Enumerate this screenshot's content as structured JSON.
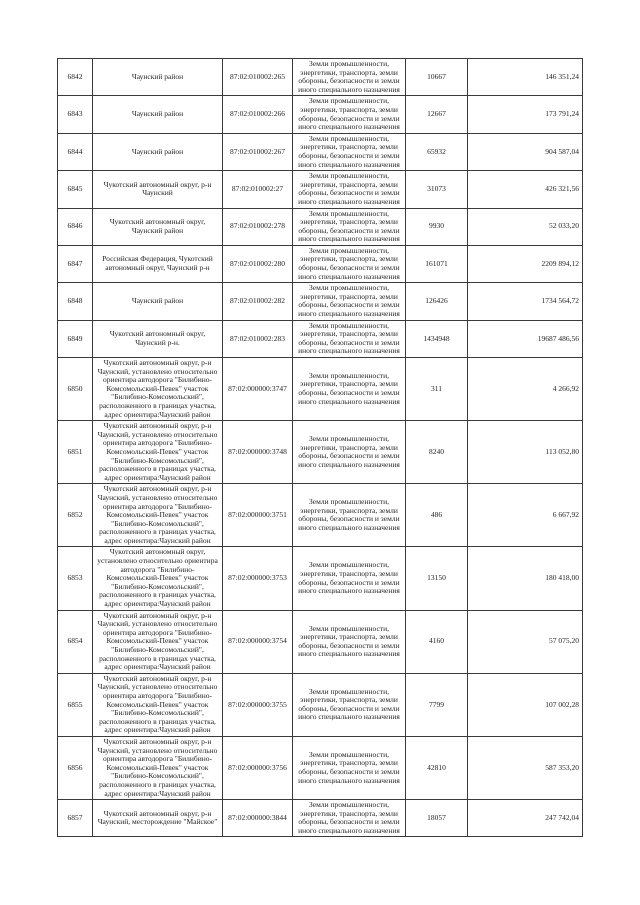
{
  "colors": {
    "page_background": "#ffffff",
    "table_border": "#3a3a3a",
    "text": "#1f1f1f"
  },
  "table": {
    "land_category_common": "Земли промышленности, энергетики, транспорта, земли обороны, безопасности и земли иного специального назначения",
    "rows": [
      {
        "num": "6842",
        "location": "Чаунский район",
        "cadastral": "87:02:010002:265",
        "area": "10667",
        "value": "146 351,24"
      },
      {
        "num": "6843",
        "location": "Чаунский район",
        "cadastral": "87:02:010002:266",
        "area": "12667",
        "value": "173 791,24"
      },
      {
        "num": "6844",
        "location": "Чаунский район",
        "cadastral": "87:02:010002:267",
        "area": "65932",
        "value": "904 587,04"
      },
      {
        "num": "6845",
        "location": "Чукотский автономный округ, р-н Чаунский",
        "cadastral": "87:02:010002:27",
        "area": "31073",
        "value": "426 321,56"
      },
      {
        "num": "6846",
        "location": "Чукотский автономный округ, Чаунский район",
        "cadastral": "87:02:010002:278",
        "area": "9930",
        "value": "52 033,20"
      },
      {
        "num": "6847",
        "location": "Российская Федерация, Чукотский автономный округ, Чаунский р-н",
        "cadastral": "87:02:010002:280",
        "area": "161071",
        "value": "2209 894,12"
      },
      {
        "num": "6848",
        "location": "Чаунский район",
        "cadastral": "87:02:010002:282",
        "area": "126426",
        "value": "1734 564,72"
      },
      {
        "num": "6849",
        "location": "Чукотский автономный округ, Чаунский р-н.",
        "cadastral": "87:02:010002:283",
        "area": "1434948",
        "value": "19687 486,56"
      },
      {
        "num": "6850",
        "location": "Чукотский автономный округ, р-н Чаунский, установлено относительно ориентира автодорога \"Билибино-Комсомольский-Певек\" участок \"Билибино-Комсомольский\", расположенного в границах участка, адрес ориентира:Чаунский район",
        "cadastral": "87:02:000000:3747",
        "area": "311",
        "value": "4 266,92"
      },
      {
        "num": "6851",
        "location": "Чукотский автономный округ, р-н Чаунский, установлено относительно ориентира автодорога \"Билибино-Комсомольский-Певек\" участок \"Билибино-Комсомольский\", расположенного в границах участка, адрес ориентира:Чаунский район",
        "cadastral": "87:02:000000:3748",
        "area": "8240",
        "value": "113 052,80"
      },
      {
        "num": "6852",
        "location": "Чукотский автономный округ, р-н Чаунский, установлено относительно ориентира автодорога \"Билибино-Комсомольский-Певек\" участок \"Билибино-Комсомольский\", расположенного в границах участка, адрес ориентира:Чаунский район",
        "cadastral": "87:02:000000:3751",
        "area": "486",
        "value": "6 667,92"
      },
      {
        "num": "6853",
        "location": "Чукотский автономный округ, установлено относительно ориентира автодорога \"Билибино-Комсомольский-Певек\" участок \"Билибино-Комсомольский\", расположенного в границах участка, адрес ориентира:Чаунский район",
        "cadastral": "87:02:000000:3753",
        "area": "13150",
        "value": "180 418,00"
      },
      {
        "num": "6854",
        "location": "Чукотский автономный округ, р-н Чаунский, установлено относительно ориентира автодорога \"Билибино-Комсомольский-Певек\" участок \"Билибино-Комсомольский\", расположенного в границах участка, адрес ориентира:Чаунский район",
        "cadastral": "87:02:000000:3754",
        "area": "4160",
        "value": "57 075,20"
      },
      {
        "num": "6855",
        "location": "Чукотский автономный округ, р-н Чаунский, установлено относительно ориентира автодорога \"Билибино-Комсомольский-Певек\" участок \"Билибино-Комсомольский\", расположенного в границах участка, адрес ориентира:Чаунский район",
        "cadastral": "87:02:000000:3755",
        "area": "7799",
        "value": "107 002,28"
      },
      {
        "num": "6856",
        "location": "Чукотский автономный округ, р-н Чаунский, установлено относительно ориентира автодорога \"Билибино-Комсомольский-Певек\" участок \"Билибино-Комсомольский\", расположенного в границах участка, адрес ориентира:Чаунский район",
        "cadastral": "87:02:000000:3756",
        "area": "42810",
        "value": "587 353,20"
      },
      {
        "num": "6857",
        "location": "Чукотский автономный округ, р-н Чаунский, месторождение \"Майское\"",
        "cadastral": "87:02:000000:3844",
        "area": "18057",
        "value": "247 742,04"
      }
    ]
  }
}
